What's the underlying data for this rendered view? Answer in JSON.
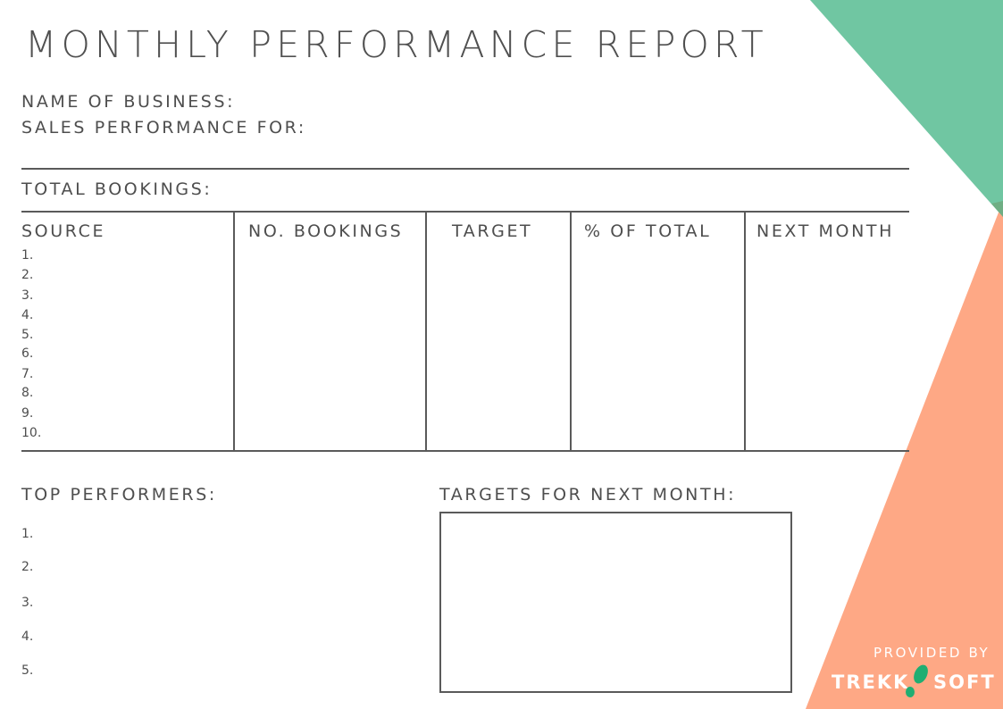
{
  "title": "MONTHLY PERFORMANCE REPORT",
  "fields": {
    "business": "NAME OF BUSINESS:",
    "period": "SALES PERFORMANCE FOR:"
  },
  "total_bookings": {
    "label": "TOTAL BOOKINGS:",
    "columns": [
      "SOURCE",
      "NO. BOOKINGS",
      "TARGET",
      "% OF TOTAL",
      "NEXT MONTH"
    ],
    "rows": [
      "1.",
      "2.",
      "3.",
      "4.",
      "5.",
      "6.",
      "7.",
      "8.",
      "9.",
      "10."
    ]
  },
  "top_performers": {
    "label": "TOP PERFORMERS:",
    "rows": [
      "1.",
      "2.",
      "3.",
      "4.",
      "5."
    ]
  },
  "targets": {
    "label": "TARGETS FOR NEXT MONTH:"
  },
  "footer": {
    "provided_by": "PROVIDED BY",
    "brand_left": "TREKK",
    "brand_right": "SOFT",
    "brand_icon": "footprint-icon"
  },
  "colors": {
    "green": "#70c6a2",
    "orange": "#fea885",
    "overlap": "#6fae84",
    "logo_green": "#1fae72"
  }
}
